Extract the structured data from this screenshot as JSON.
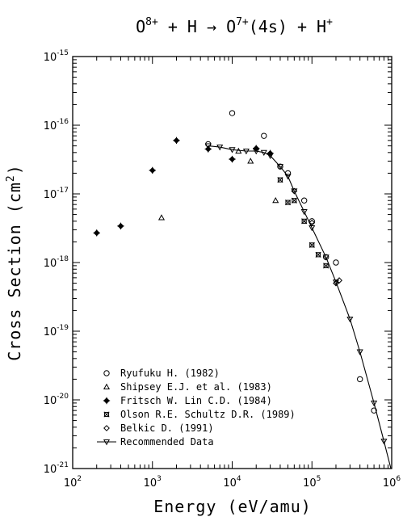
{
  "chart_data": {
    "type": "scatter",
    "title": "O^8+ + H → O^7+(4s) + H^+",
    "title_parts": {
      "a": "O",
      "a_sup": "8+",
      "b": " + H → O",
      "b_sup": "7+",
      "c": "(4s) + H",
      "c_sup": "+"
    },
    "xlabel": "Energy (eV/amu)",
    "ylabel_main": "Cross Section (cm",
    "ylabel_sup": "2",
    "ylabel_end": ")",
    "xscale": "log",
    "yscale": "log",
    "xlim": [
      100,
      1000000
    ],
    "ylim": [
      1e-21,
      1e-15
    ],
    "x_ticks": [
      {
        "value": 100,
        "base": "10",
        "exp": "2"
      },
      {
        "value": 1000,
        "base": "10",
        "exp": "3"
      },
      {
        "value": 10000,
        "base": "10",
        "exp": "4"
      },
      {
        "value": 100000,
        "base": "10",
        "exp": "5"
      },
      {
        "value": 1000000,
        "base": "10",
        "exp": "6"
      }
    ],
    "y_ticks": [
      {
        "value": 1e-15,
        "base": "10",
        "exp": "-15"
      },
      {
        "value": 1e-16,
        "base": "10",
        "exp": "-16"
      },
      {
        "value": 1e-17,
        "base": "10",
        "exp": "-17"
      },
      {
        "value": 1e-18,
        "base": "10",
        "exp": "-18"
      },
      {
        "value": 1e-19,
        "base": "10",
        "exp": "-19"
      },
      {
        "value": 1e-20,
        "base": "10",
        "exp": "-20"
      },
      {
        "value": 1e-21,
        "base": "10",
        "exp": "-21"
      }
    ],
    "legend_position": "bottom-left",
    "series": [
      {
        "name": "Ryufuku H. (1982)",
        "marker": "circle",
        "points": [
          [
            5000,
            5.3e-17
          ],
          [
            10000,
            1.5e-16
          ],
          [
            25000,
            7e-17
          ],
          [
            40000,
            2.5e-17
          ],
          [
            50000,
            2e-17
          ],
          [
            80000,
            8e-18
          ],
          [
            100000,
            4e-18
          ],
          [
            150000,
            1.2e-18
          ],
          [
            200000,
            1e-18
          ],
          [
            400000,
            2e-20
          ],
          [
            600000,
            7e-21
          ]
        ]
      },
      {
        "name": "Shipsey E.J. et al. (1983)",
        "marker": "triangle",
        "points": [
          [
            1300,
            4.5e-18
          ],
          [
            12000,
            4.2e-17
          ],
          [
            17000,
            3e-17
          ],
          [
            35000,
            8e-18
          ]
        ]
      },
      {
        "name": "Fritsch W. Lin C.D. (1984)",
        "marker": "plus-diamond",
        "points": [
          [
            200,
            2.7e-18
          ],
          [
            400,
            3.4e-18
          ],
          [
            1000,
            2.2e-17
          ],
          [
            2000,
            6e-17
          ],
          [
            5000,
            4.5e-17
          ],
          [
            10000,
            3.2e-17
          ],
          [
            20000,
            4.6e-17
          ],
          [
            30000,
            3.9e-17
          ]
        ]
      },
      {
        "name": "Olson R.E. Schultz D.R. (1989)",
        "marker": "x-box",
        "points": [
          [
            40000,
            1.6e-17
          ],
          [
            50000,
            7.5e-18
          ],
          [
            60000,
            8e-18
          ],
          [
            80000,
            4e-18
          ],
          [
            100000,
            1.8e-18
          ],
          [
            120000,
            1.3e-18
          ],
          [
            150000,
            9e-19
          ]
        ]
      },
      {
        "name": "Belkic D. (1991)",
        "marker": "diamond",
        "points": [
          [
            60000,
            1.1e-17
          ],
          [
            100000,
            3.8e-18
          ],
          [
            200000,
            5e-19
          ],
          [
            220000,
            5.5e-19
          ]
        ]
      },
      {
        "name": "Recommended Data",
        "marker": "down-triangle",
        "line": true,
        "points": [
          [
            5000,
            5e-17
          ],
          [
            7000,
            4.8e-17
          ],
          [
            10000,
            4.4e-17
          ],
          [
            15000,
            4.2e-17
          ],
          [
            20000,
            4.2e-17
          ],
          [
            25000,
            4e-17
          ],
          [
            30000,
            3.6e-17
          ],
          [
            40000,
            2.5e-17
          ],
          [
            50000,
            1.8e-17
          ],
          [
            60000,
            1.1e-17
          ],
          [
            80000,
            5.5e-18
          ],
          [
            100000,
            3.2e-18
          ],
          [
            150000,
            1.2e-18
          ],
          [
            200000,
            5.2e-19
          ],
          [
            300000,
            1.5e-19
          ],
          [
            400000,
            5e-20
          ],
          [
            600000,
            9e-21
          ],
          [
            800000,
            2.5e-21
          ],
          [
            1000000,
            9e-22
          ]
        ]
      }
    ]
  }
}
